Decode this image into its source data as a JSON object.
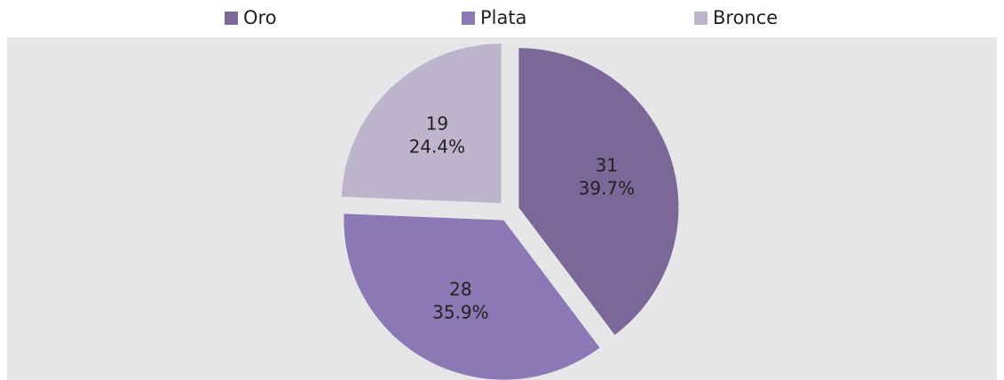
{
  "chart_data": {
    "type": "pie",
    "categories": [
      "Oro",
      "Plata",
      "Bronce"
    ],
    "values": [
      31,
      28,
      19
    ],
    "percent_labels": [
      "39.7%",
      "35.9%",
      "24.4%"
    ],
    "colors": [
      "#7b6899",
      "#8c78b4",
      "#bcb5cc"
    ],
    "legend": "top"
  }
}
